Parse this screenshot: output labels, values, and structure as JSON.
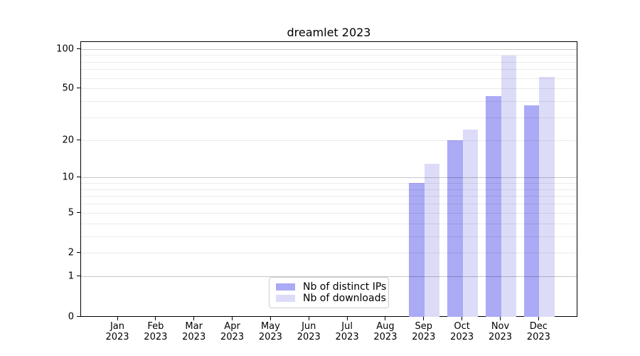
{
  "chart_data": {
    "type": "bar",
    "title": "dreamlet 2023",
    "categories": [
      {
        "month": "Jan",
        "year": "2023"
      },
      {
        "month": "Feb",
        "year": "2023"
      },
      {
        "month": "Mar",
        "year": "2023"
      },
      {
        "month": "Apr",
        "year": "2023"
      },
      {
        "month": "May",
        "year": "2023"
      },
      {
        "month": "Jun",
        "year": "2023"
      },
      {
        "month": "Jul",
        "year": "2023"
      },
      {
        "month": "Aug",
        "year": "2023"
      },
      {
        "month": "Sep",
        "year": "2023"
      },
      {
        "month": "Oct",
        "year": "2023"
      },
      {
        "month": "Nov",
        "year": "2023"
      },
      {
        "month": "Dec",
        "year": "2023"
      }
    ],
    "series": [
      {
        "name": "Nb of distinct IPs",
        "color": "#aaaaf5",
        "values": [
          0,
          0,
          0,
          0,
          0,
          0,
          0,
          0,
          9,
          20,
          44,
          37
        ]
      },
      {
        "name": "Nb of downloads",
        "color": "#dcdcf8",
        "values": [
          0,
          0,
          0,
          0,
          0,
          0,
          0,
          0,
          13,
          24,
          89,
          61
        ]
      }
    ],
    "y_scale": "log10(1+y)",
    "ylim": [
      0,
      113
    ],
    "y_tick_values": [
      0,
      1,
      2,
      5,
      10,
      20,
      50,
      100
    ],
    "y_tick_labels": [
      "0",
      "1",
      "2",
      "5",
      "10",
      "20",
      "50",
      "100"
    ],
    "major_gridlines": [
      1,
      10,
      100
    ],
    "minor_gridlines": [
      2,
      3,
      4,
      5,
      6,
      7,
      8,
      9,
      20,
      30,
      40,
      50,
      60,
      70,
      80,
      90
    ],
    "grid": "horizontal",
    "legend_position": "inside-bottom-center",
    "xlabel": "",
    "ylabel": ""
  }
}
